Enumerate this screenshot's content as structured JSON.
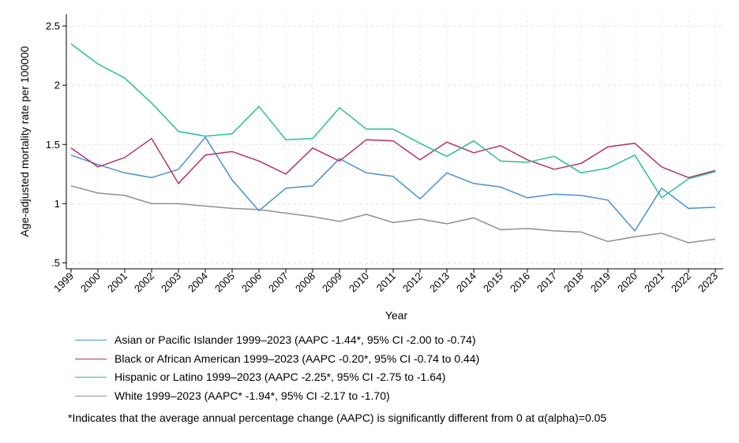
{
  "chart_data": {
    "type": "line",
    "xlabel": "Year",
    "ylabel": "Age-adjusted mortality rate per 100000",
    "x": [
      "1999",
      "2000",
      "2001",
      "2002",
      "2003",
      "2004",
      "2005",
      "2006",
      "2007",
      "2008",
      "2009",
      "2010",
      "2011",
      "2012",
      "2013",
      "2014",
      "2015",
      "2016",
      "2017",
      "2018",
      "2019",
      "2020",
      "2021",
      "2022",
      "2023"
    ],
    "ylim": [
      0.45,
      2.6
    ],
    "yticks": [
      0.5,
      1,
      1.5,
      2,
      2.5
    ],
    "ytick_labels": [
      ".5",
      "1",
      "1.5",
      "2",
      "2.5"
    ],
    "grid": true,
    "legend_position": "bottom",
    "series": [
      {
        "name": "Asian or Pacific Islander 1999–2023 (AAPC -1.44*, 95% CI -2.00 to -0.74)",
        "color": "#4a90d0",
        "values": [
          1.41,
          1.33,
          1.26,
          1.22,
          1.29,
          1.56,
          1.2,
          0.94,
          1.13,
          1.15,
          1.38,
          1.26,
          1.23,
          1.04,
          1.26,
          1.17,
          1.14,
          1.05,
          1.08,
          1.07,
          1.03,
          0.77,
          1.13,
          0.96,
          0.97
        ]
      },
      {
        "name": "Black or African American 1999–2023 (AAPC -0.20*, 95% CI -0.74 to 0.44)",
        "color": "#b5306a",
        "values": [
          1.47,
          1.31,
          1.39,
          1.55,
          1.17,
          1.41,
          1.44,
          1.36,
          1.25,
          1.47,
          1.36,
          1.54,
          1.53,
          1.37,
          1.52,
          1.43,
          1.49,
          1.37,
          1.29,
          1.34,
          1.48,
          1.51,
          1.31,
          1.22,
          1.28
        ]
      },
      {
        "name": "Hispanic or Latino 1999–2023 (AAPC -2.25*, 95% CI -2.75 to -1.64)",
        "color": "#2bbf95",
        "values": [
          2.35,
          2.18,
          2.06,
          1.85,
          1.61,
          1.57,
          1.59,
          1.82,
          1.54,
          1.55,
          1.81,
          1.63,
          1.63,
          1.51,
          1.4,
          1.53,
          1.36,
          1.35,
          1.4,
          1.26,
          1.3,
          1.41,
          1.05,
          1.21,
          1.27
        ]
      },
      {
        "name": "White 1999–2023 (AAPC* -1.94*, 95% CI -2.17 to -1.70)",
        "color": "#909090",
        "values": [
          1.15,
          1.09,
          1.07,
          1.0,
          1.0,
          0.98,
          0.96,
          0.95,
          0.92,
          0.89,
          0.85,
          0.91,
          0.84,
          0.87,
          0.83,
          0.88,
          0.78,
          0.79,
          0.77,
          0.76,
          0.68,
          0.72,
          0.75,
          0.67,
          0.7
        ]
      }
    ],
    "footnote": "*Indicates that the average annual percentage change (AAPC) is significantly different from 0 at α(alpha)=0.05"
  }
}
